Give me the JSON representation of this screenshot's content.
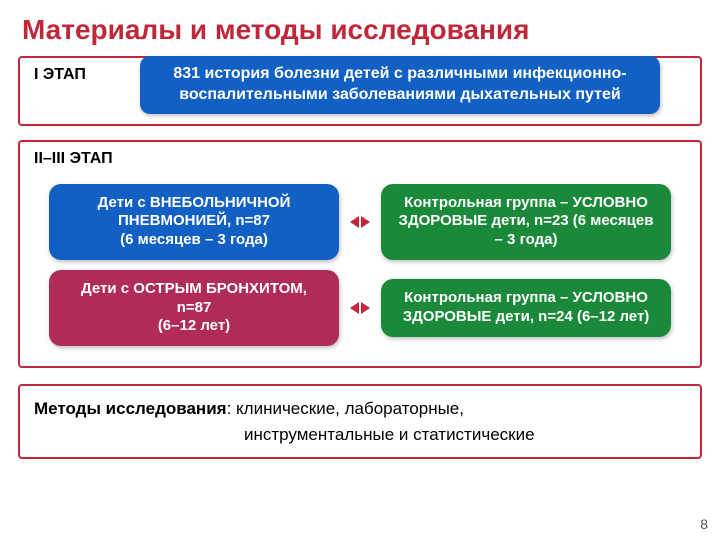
{
  "title": "Материалы и методы исследования",
  "stage1": {
    "label": "I ЭТАП",
    "banner": "831 история болезни детей с различными инфекционно-воспалительными заболеваниями дыхательных путей",
    "banner_bg": "#1360c5"
  },
  "stage2": {
    "label": "II–III ЭТАП",
    "rows": [
      {
        "left": {
          "text": "Дети с ВНЕБОЛЬНИЧНОЙ ПНЕВМОНИЕЙ, n=87\n(6 месяцев – 3 года)",
          "bg": "#1360c5"
        },
        "right": {
          "text": "Контрольная группа – УСЛОВНО ЗДОРОВЫЕ дети, n=23 (6 месяцев – 3 года)",
          "bg": "#1a8a3a"
        },
        "marker_color": "#c0283a"
      },
      {
        "left": {
          "text": "Дети с ОСТРЫМ БРОНХИТОМ, n=87\n(6–12 лет)",
          "bg": "#b02a5a"
        },
        "right": {
          "text": "Контрольная группа – УСЛОВНО ЗДОРОВЫЕ дети, n=24 (6–12 лет)",
          "bg": "#1a8a3a"
        },
        "marker_color": "#c0283a"
      }
    ]
  },
  "methods": {
    "label": "Методы исследования",
    "line1": ": клинические, лабораторные,",
    "line2": "инструментальные и статистические"
  },
  "border_color": "#c0283a",
  "title_color": "#c0283a",
  "page_number": "8"
}
